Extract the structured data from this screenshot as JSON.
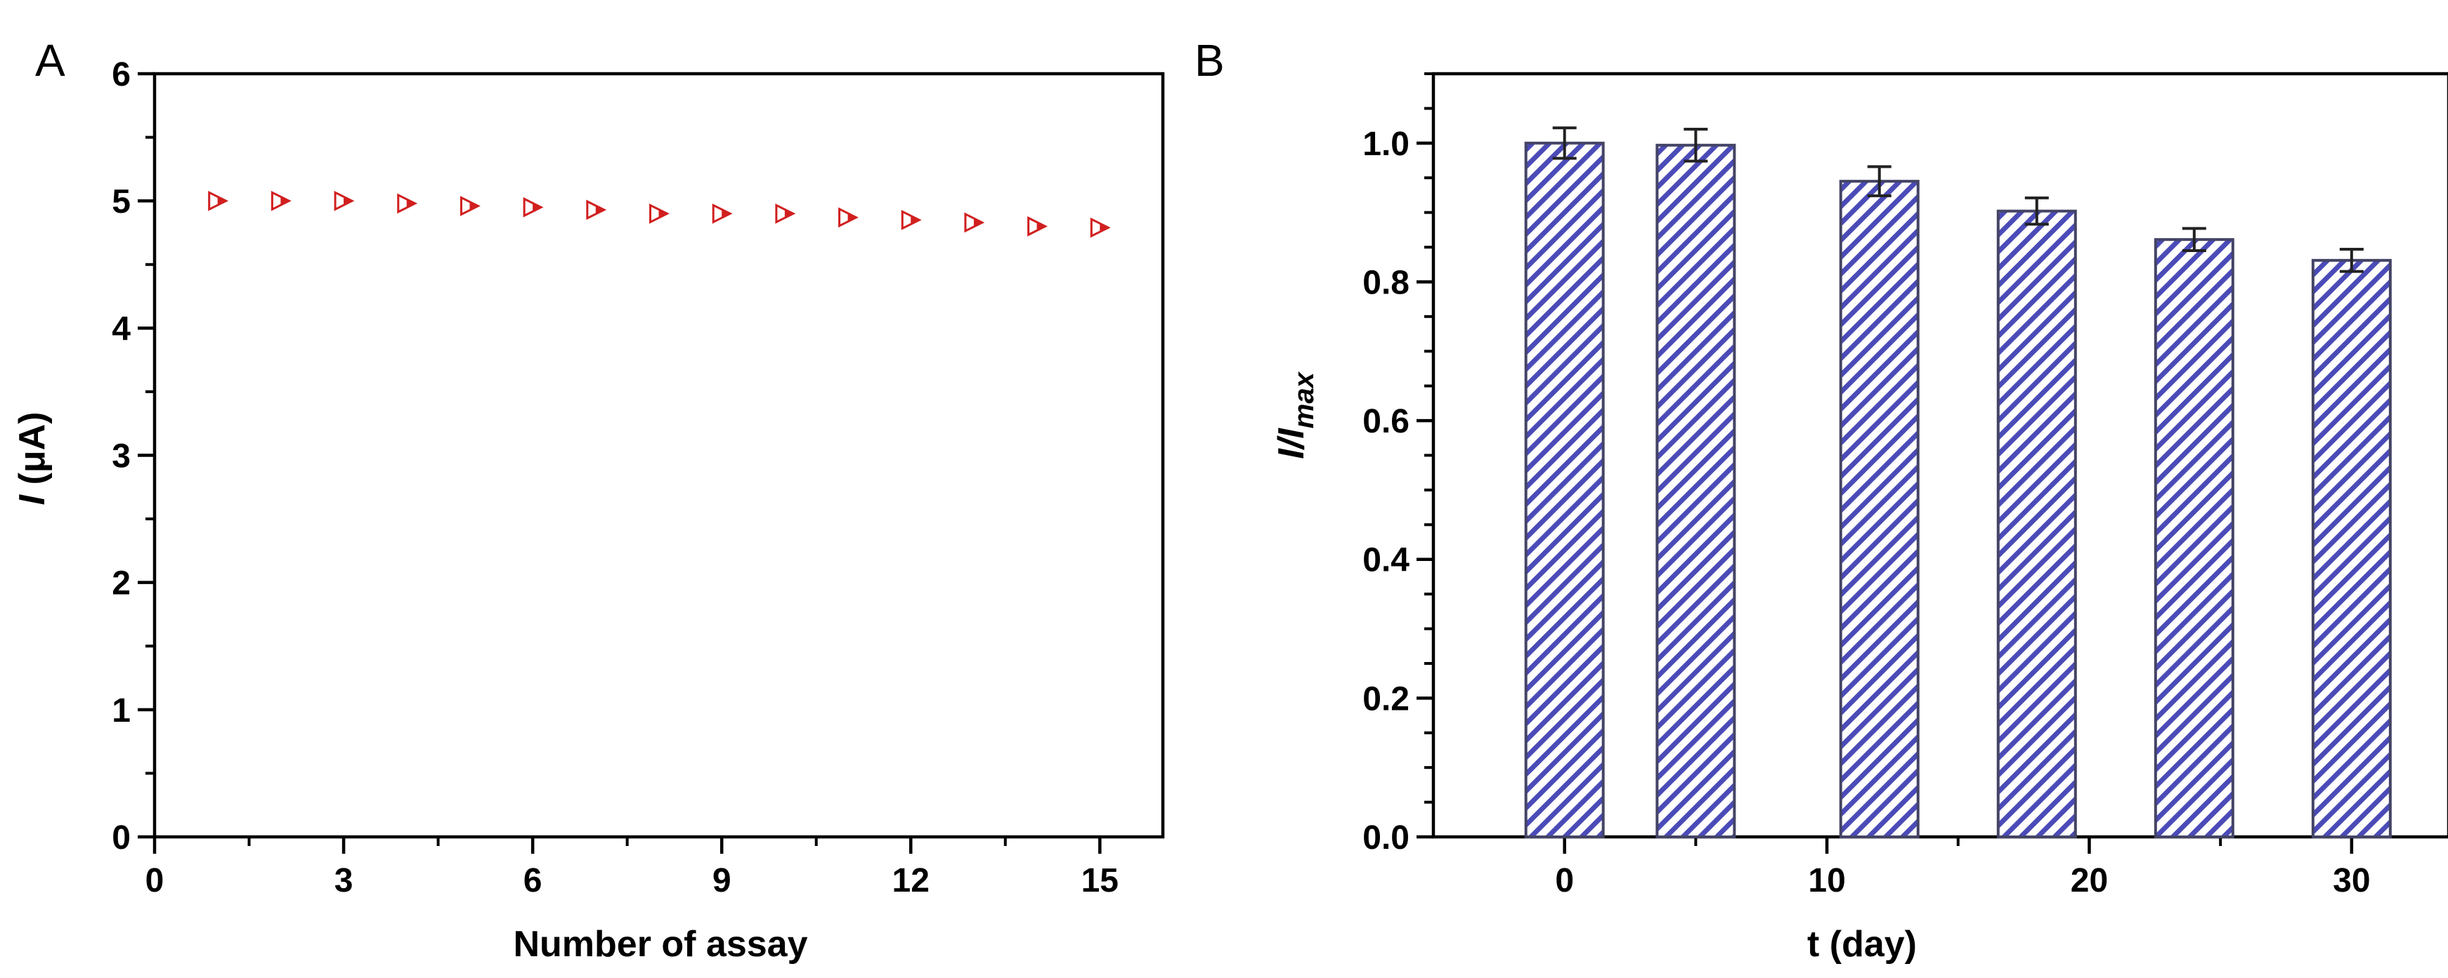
{
  "panels": {
    "a": {
      "label": "A"
    },
    "b": {
      "label": "B"
    }
  },
  "colors": {
    "marker_red": "#d11f1f",
    "bar_hatch": "#4b4bb8",
    "bar_edge": "#444466"
  },
  "chart_data": [
    {
      "type": "scatter",
      "panel": "A",
      "xlabel": "Number of assay",
      "ylabel": {
        "italic": "I",
        "rest": " (μA)"
      },
      "xlim": [
        0,
        16
      ],
      "ylim": [
        0,
        6
      ],
      "xticks": [
        0,
        3,
        6,
        9,
        12,
        15
      ],
      "xtick_labels": [
        "0",
        "3",
        "6",
        "9",
        "12",
        "15"
      ],
      "yticks": [
        0,
        1,
        2,
        3,
        4,
        5,
        6
      ],
      "ytick_labels": [
        "0",
        "1",
        "2",
        "3",
        "4",
        "5",
        "6"
      ],
      "marker": "half-filled right-pointing triangle",
      "grid": false,
      "series": [
        {
          "x": [
            1,
            2,
            3,
            4,
            5,
            6,
            7,
            8,
            9,
            10,
            11,
            12,
            13,
            14,
            15
          ],
          "y": [
            5.0,
            5.0,
            5.0,
            4.98,
            4.96,
            4.95,
            4.93,
            4.9,
            4.9,
            4.9,
            4.87,
            4.85,
            4.83,
            4.8,
            4.79
          ]
        }
      ]
    },
    {
      "type": "bar",
      "panel": "B",
      "xlabel": "t (day)",
      "ylabel": {
        "main": "I/I",
        "sub": "max"
      },
      "xlim": [
        -5,
        33.7
      ],
      "ylim": [
        0,
        1.1
      ],
      "xticks": [
        0,
        10,
        20,
        30
      ],
      "xtick_labels": [
        "0",
        "10",
        "20",
        "30"
      ],
      "yticks": [
        0.0,
        0.2,
        0.4,
        0.6,
        0.8,
        1.0
      ],
      "ytick_labels": [
        "0.0",
        "0.2",
        "0.4",
        "0.6",
        "0.8",
        "1.0"
      ],
      "bar_fill": "diagonal hatch",
      "grid": false,
      "x": [
        0,
        5,
        12,
        18,
        24,
        30
      ],
      "values": [
        1.0,
        0.997,
        0.945,
        0.902,
        0.861,
        0.831
      ],
      "errors": [
        0.022,
        0.023,
        0.021,
        0.019,
        0.016,
        0.016
      ]
    }
  ]
}
